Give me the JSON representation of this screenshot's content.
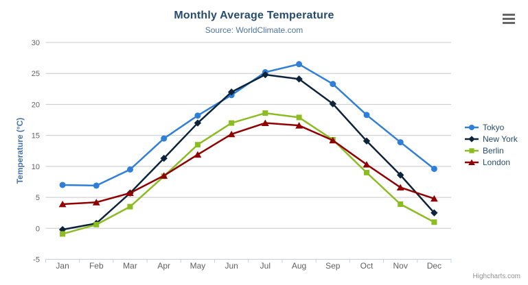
{
  "credits_label": "Highcharts.com",
  "export_menu": {
    "icon": "hamburger-icon"
  },
  "axis_colors": {
    "grid_line": "#c8c8c8",
    "axis_line": "#c0d0e0",
    "tick_label": "#606060",
    "y_title": "#4572a7",
    "title": "#274b6d",
    "subtitle": "#4d759e"
  },
  "chart_data": {
    "type": "line",
    "title": "Monthly Average Temperature",
    "subtitle": "Source: WorldClimate.com",
    "xlabel": "",
    "ylabel": "Temperature (°C)",
    "ylim": [
      -5,
      30
    ],
    "yticks": [
      -5,
      0,
      5,
      10,
      15,
      20,
      25,
      30
    ],
    "grid": true,
    "legend_position": "right",
    "categories": [
      "Jan",
      "Feb",
      "Mar",
      "Apr",
      "May",
      "Jun",
      "Jul",
      "Aug",
      "Sep",
      "Oct",
      "Nov",
      "Dec"
    ],
    "series": [
      {
        "name": "Tokyo",
        "color": "#2f7ed8",
        "marker": "circle",
        "values": [
          7.0,
          6.9,
          9.5,
          14.5,
          18.2,
          21.5,
          25.2,
          26.5,
          23.3,
          18.3,
          13.9,
          9.6
        ]
      },
      {
        "name": "New York",
        "color": "#0d233a",
        "marker": "diamond",
        "values": [
          -0.2,
          0.8,
          5.7,
          11.3,
          17.0,
          22.0,
          24.8,
          24.1,
          20.1,
          14.1,
          8.6,
          2.5
        ]
      },
      {
        "name": "Berlin",
        "color": "#8bbc21",
        "marker": "square",
        "values": [
          -0.9,
          0.6,
          3.5,
          8.4,
          13.5,
          17.0,
          18.6,
          17.9,
          14.3,
          9.0,
          3.9,
          1.0
        ]
      },
      {
        "name": "London",
        "color": "#910000",
        "marker": "triangle",
        "values": [
          3.9,
          4.2,
          5.7,
          8.5,
          11.9,
          15.2,
          17.0,
          16.6,
          14.2,
          10.3,
          6.6,
          4.8
        ]
      }
    ]
  }
}
